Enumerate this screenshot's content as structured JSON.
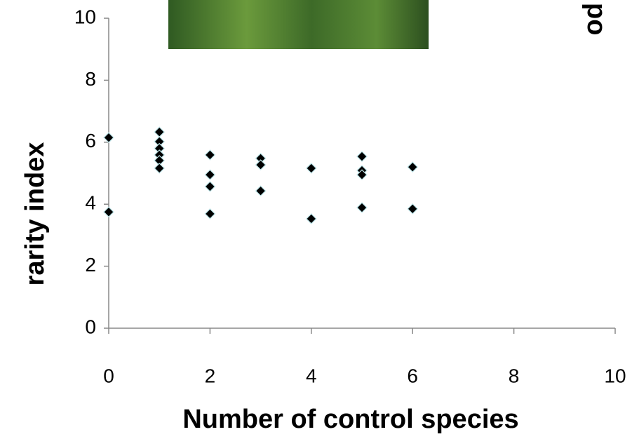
{
  "chart_data": {
    "type": "scatter",
    "x_label": "Number of control species",
    "y_label": "rarity index",
    "annotation": "po",
    "series": [
      {
        "color": "#000000",
        "x": [
          0,
          0,
          1,
          1,
          1,
          1,
          1,
          1,
          2,
          2,
          2,
          2,
          3,
          3,
          3,
          4,
          4,
          5,
          5,
          5,
          5,
          6,
          6
        ],
        "values": [
          6.15,
          3.75,
          6.33,
          6.02,
          5.8,
          5.59,
          5.41,
          5.16,
          5.59,
          4.95,
          4.57,
          3.69,
          5.48,
          5.27,
          4.43,
          5.16,
          3.53,
          5.54,
          5.09,
          4.95,
          3.89,
          5.2,
          3.85
        ]
      }
    ],
    "xlim": [
      0,
      10
    ],
    "xticks": [
      0,
      2,
      4,
      6,
      8,
      10
    ],
    "ylim": [
      0,
      10
    ],
    "yticks": [
      0,
      2,
      4,
      6,
      8,
      10
    ]
  }
}
